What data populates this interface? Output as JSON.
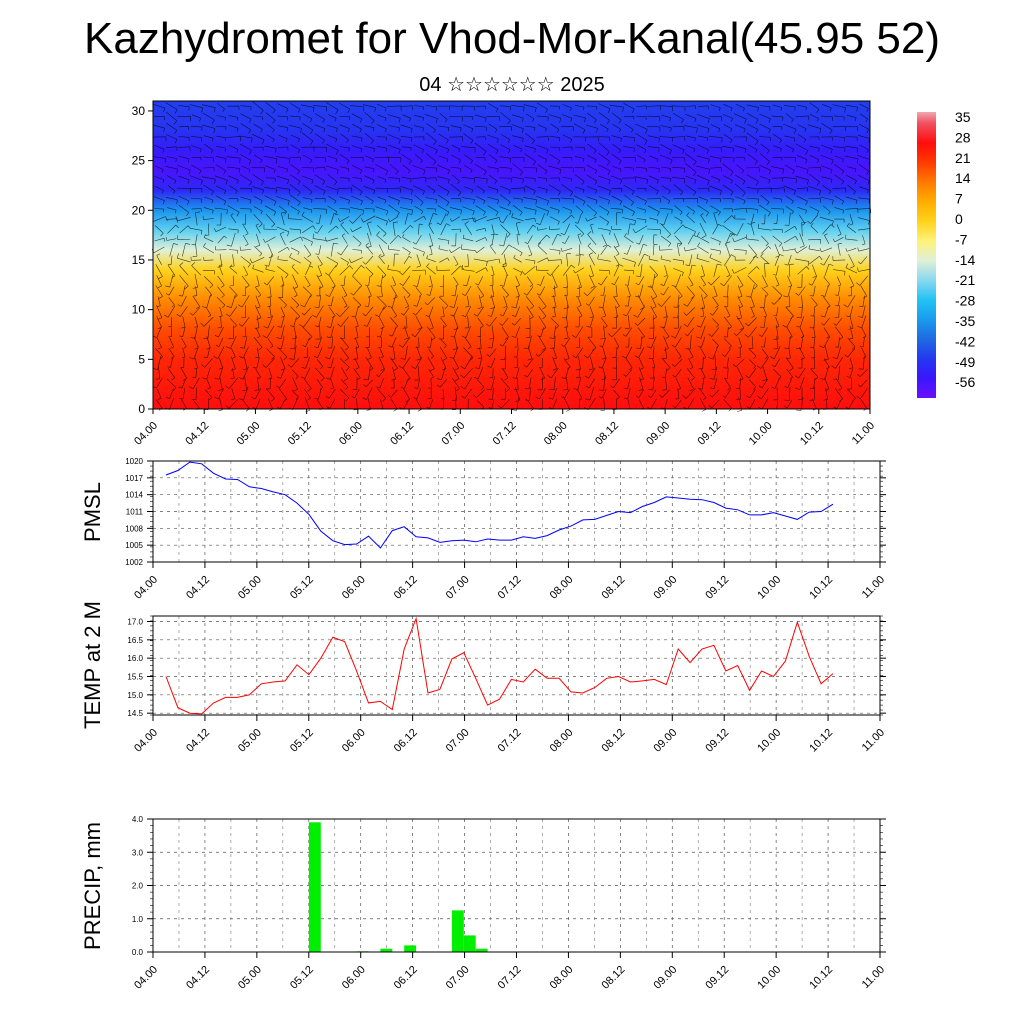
{
  "title": "Kazhydromet for Vhod-Mor-Kanal(45.95 52)",
  "subtitle": "04 ☆☆☆☆☆☆ 2025",
  "x_tick_labels": [
    "04.00",
    "04.12",
    "05.00",
    "05.12",
    "06.00",
    "06.12",
    "07.00",
    "07.12",
    "08.00",
    "08.12",
    "09.00",
    "09.12",
    "10.00",
    "10.12",
    "11.00"
  ],
  "chart_data": [
    {
      "type": "heatmap",
      "title": "",
      "ylabel": "",
      "y_ticks": [
        "0",
        "5",
        "10",
        "15",
        "20",
        "25",
        "30"
      ],
      "ylim": [
        0,
        31
      ],
      "colorbar_labels": [
        "35",
        "28",
        "21",
        "14",
        "7",
        "0",
        "-7",
        "-14",
        "-21",
        "-28",
        "-35",
        "-42",
        "-49",
        "-56"
      ],
      "colorbar_range": [
        -63,
        39
      ],
      "note_overlay": "wind vectors",
      "temperature_profile": [
        {
          "level": 0,
          "value": 28
        },
        {
          "level": 5,
          "value": 24
        },
        {
          "level": 8,
          "value": 19
        },
        {
          "level": 11,
          "value": 12
        },
        {
          "level": 14,
          "value": 0
        },
        {
          "level": 16,
          "value": -14
        },
        {
          "level": 18,
          "value": -24
        },
        {
          "level": 20,
          "value": -36
        },
        {
          "level": 22,
          "value": -52
        },
        {
          "level": 24,
          "value": -58
        },
        {
          "level": 26,
          "value": -55
        },
        {
          "level": 28,
          "value": -50
        },
        {
          "level": 31,
          "value": -48
        }
      ]
    },
    {
      "type": "line",
      "ylabel": "PMSL",
      "ylim": [
        1002,
        1020
      ],
      "y_ticks": [
        "1002",
        "1005",
        "1008",
        "1011",
        "1014",
        "1017",
        "1020"
      ],
      "color": "#0000ff",
      "x": [
        0,
        1,
        2,
        3,
        4,
        5,
        6,
        7,
        8,
        9,
        10,
        11,
        12,
        13,
        14,
        15,
        16,
        17,
        18,
        19,
        20,
        21,
        22,
        23,
        24,
        25,
        26,
        27,
        28,
        29,
        30,
        31,
        32,
        33,
        34,
        35,
        36,
        37,
        38,
        39,
        40,
        41,
        42,
        43,
        44,
        45,
        46,
        47,
        48,
        49,
        50,
        51,
        52,
        53,
        54,
        55,
        56
      ],
      "values": [
        1017.5,
        1018.3,
        1019.8,
        1019.5,
        1017.8,
        1016.8,
        1016.7,
        1015.4,
        1015.1,
        1014.5,
        1014.0,
        1012.5,
        1010.5,
        1007.5,
        1005.8,
        1005.1,
        1005.2,
        1006.6,
        1004.5,
        1007.6,
        1008.3,
        1006.5,
        1006.3,
        1005.5,
        1005.8,
        1005.9,
        1005.6,
        1006.1,
        1005.9,
        1005.9,
        1006.5,
        1006.2,
        1006.7,
        1007.7,
        1008.4,
        1009.5,
        1009.6,
        1010.3,
        1011.0,
        1010.8,
        1011.9,
        1012.6,
        1013.6,
        1013.4,
        1013.2,
        1013.1,
        1012.6,
        1011.6,
        1011.3,
        1010.4,
        1010.4,
        1010.8,
        1010.2,
        1009.6,
        1010.9,
        1011.0,
        1012.3
      ]
    },
    {
      "type": "line",
      "ylabel": "TEMP at 2 M",
      "ylim": [
        14.45,
        17.15
      ],
      "y_ticks": [
        "14.5",
        "15.0",
        "15.5",
        "16.0",
        "16.5",
        "17.0"
      ],
      "color": "#ff0000",
      "x": [
        0,
        1,
        2,
        3,
        4,
        5,
        6,
        7,
        8,
        9,
        10,
        11,
        12,
        13,
        14,
        15,
        16,
        17,
        18,
        19,
        20,
        21,
        22,
        23,
        24,
        25,
        26,
        27,
        28,
        29,
        30,
        31,
        32,
        33,
        34,
        35,
        36,
        37,
        38,
        39,
        40,
        41,
        42,
        43,
        44,
        45,
        46,
        47,
        48,
        49,
        50,
        51,
        52,
        53,
        54,
        55,
        56
      ],
      "values": [
        15.5,
        14.65,
        14.5,
        14.48,
        14.78,
        14.93,
        14.93,
        15.0,
        15.3,
        15.35,
        15.38,
        15.82,
        15.55,
        16.0,
        16.57,
        16.45,
        15.65,
        14.78,
        14.82,
        14.6,
        16.25,
        17.08,
        15.05,
        15.15,
        15.98,
        16.15,
        15.45,
        14.72,
        14.88,
        15.42,
        15.35,
        15.7,
        15.45,
        15.45,
        15.08,
        15.05,
        15.2,
        15.45,
        15.5,
        15.35,
        15.38,
        15.42,
        15.28,
        16.25,
        15.88,
        16.25,
        16.35,
        15.65,
        15.8,
        15.12,
        15.65,
        15.5,
        15.92,
        16.98,
        16.05,
        15.3,
        15.58
      ]
    },
    {
      "type": "bar",
      "ylabel": "PRECIP, mm",
      "ylim": [
        0,
        4.0
      ],
      "y_ticks": [
        "0.0",
        "1.0",
        "2.0",
        "3.0",
        "4.0"
      ],
      "color": "#00ee00",
      "bars": [
        {
          "x": 12.5,
          "value": 3.9
        },
        {
          "x": 16.5,
          "value": 0.02
        },
        {
          "x": 18.5,
          "value": 0.1
        },
        {
          "x": 20.5,
          "value": 0.2
        },
        {
          "x": 24.5,
          "value": 1.25
        },
        {
          "x": 25.5,
          "value": 0.5
        },
        {
          "x": 26.5,
          "value": 0.1
        }
      ]
    }
  ]
}
